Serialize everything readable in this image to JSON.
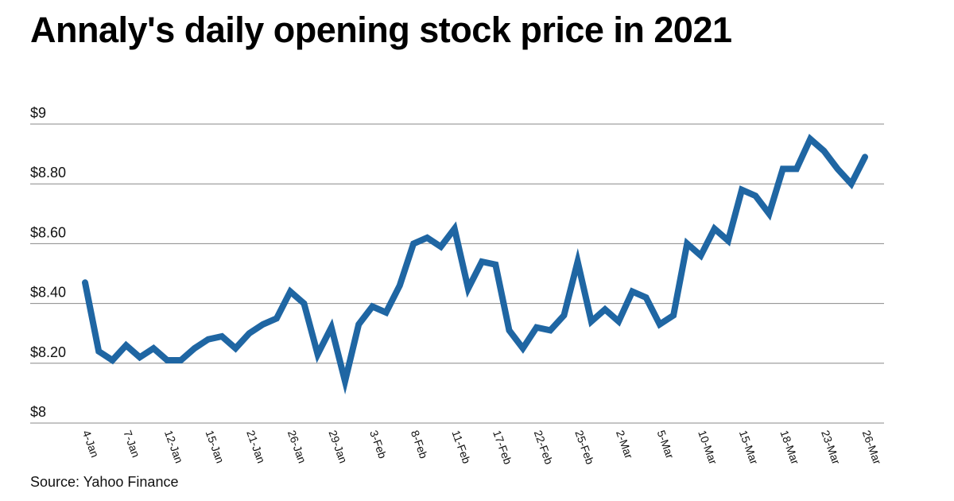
{
  "title": "Annaly's daily opening stock price in 2021",
  "source": "Source: Yahoo Finance",
  "colors": {
    "line": "#1f66a3",
    "grid": "#888888",
    "text": "#111111"
  },
  "chart_data": {
    "type": "line",
    "title": "Annaly's daily opening stock price in 2021",
    "xlabel": "",
    "ylabel": "",
    "ylim": [
      8.0,
      9.0
    ],
    "grid": true,
    "y_ticks": [
      {
        "value": 9.0,
        "label": "$9"
      },
      {
        "value": 8.8,
        "label": "$8.80"
      },
      {
        "value": 8.6,
        "label": "$8.60"
      },
      {
        "value": 8.4,
        "label": "$8.40"
      },
      {
        "value": 8.2,
        "label": "$8.20"
      },
      {
        "value": 8.0,
        "label": "$8"
      }
    ],
    "x_ticks": [
      {
        "index": 0,
        "label": "4-Jan"
      },
      {
        "index": 3,
        "label": "7-Jan"
      },
      {
        "index": 6,
        "label": "12-Jan"
      },
      {
        "index": 9,
        "label": "15-Jan"
      },
      {
        "index": 12,
        "label": "21-Jan"
      },
      {
        "index": 15,
        "label": "26-Jan"
      },
      {
        "index": 18,
        "label": "29-Jan"
      },
      {
        "index": 21,
        "label": "3-Feb"
      },
      {
        "index": 24,
        "label": "8-Feb"
      },
      {
        "index": 27,
        "label": "11-Feb"
      },
      {
        "index": 30,
        "label": "17-Feb"
      },
      {
        "index": 33,
        "label": "22-Feb"
      },
      {
        "index": 36,
        "label": "25-Feb"
      },
      {
        "index": 39,
        "label": "2-Mar"
      },
      {
        "index": 42,
        "label": "5-Mar"
      },
      {
        "index": 45,
        "label": "10-Mar"
      },
      {
        "index": 48,
        "label": "15-Mar"
      },
      {
        "index": 51,
        "label": "18-Mar"
      },
      {
        "index": 54,
        "label": "23-Mar"
      },
      {
        "index": 57,
        "label": "26-Mar"
      }
    ],
    "series": [
      {
        "name": "Opening price",
        "values": [
          8.47,
          8.24,
          8.21,
          8.26,
          8.22,
          8.25,
          8.21,
          8.21,
          8.25,
          8.28,
          8.29,
          8.25,
          8.3,
          8.33,
          8.35,
          8.44,
          8.4,
          8.23,
          8.32,
          8.14,
          8.33,
          8.39,
          8.37,
          8.46,
          8.6,
          8.62,
          8.59,
          8.65,
          8.45,
          8.54,
          8.53,
          8.31,
          8.25,
          8.32,
          8.31,
          8.36,
          8.54,
          8.34,
          8.38,
          8.34,
          8.44,
          8.42,
          8.33,
          8.36,
          8.6,
          8.56,
          8.65,
          8.61,
          8.78,
          8.76,
          8.7,
          8.85,
          8.85,
          8.95,
          8.91,
          8.85,
          8.8,
          8.89
        ]
      }
    ]
  }
}
